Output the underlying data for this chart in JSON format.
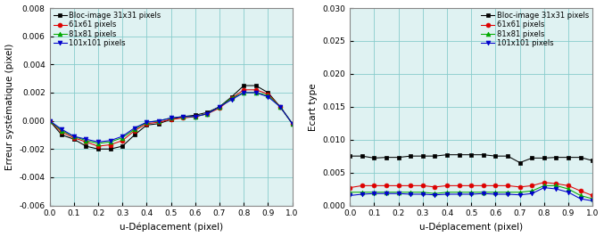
{
  "x": [
    0.0,
    0.05,
    0.1,
    0.15,
    0.2,
    0.25,
    0.3,
    0.35,
    0.4,
    0.45,
    0.5,
    0.55,
    0.6,
    0.65,
    0.7,
    0.75,
    0.8,
    0.85,
    0.9,
    0.95,
    1.0
  ],
  "left_series": {
    "s31": [
      0.0,
      -0.001,
      -0.0013,
      -0.0018,
      -0.002,
      -0.002,
      -0.0018,
      -0.001,
      -0.0003,
      -0.0002,
      0.0001,
      0.0003,
      0.0004,
      0.0006,
      0.001,
      0.0017,
      0.0025,
      0.0025,
      0.002,
      0.001,
      -0.0002
    ],
    "s61": [
      0.0,
      -0.0008,
      -0.0012,
      -0.0015,
      -0.0018,
      -0.0017,
      -0.0014,
      -0.0007,
      -0.0002,
      -0.0001,
      0.0001,
      0.0002,
      0.0003,
      0.0005,
      0.0009,
      0.0016,
      0.0022,
      0.0022,
      0.0019,
      0.001,
      -0.0002
    ],
    "s81": [
      0.0,
      -0.0007,
      -0.0011,
      -0.0014,
      -0.0016,
      -0.0015,
      -0.0012,
      -0.0006,
      -0.0001,
      0.0,
      0.0002,
      0.0003,
      0.0003,
      0.0005,
      0.001,
      0.0016,
      0.002,
      0.002,
      0.0018,
      0.001,
      -0.0002
    ],
    "s101": [
      0.0,
      -0.0006,
      -0.0011,
      -0.0013,
      -0.0015,
      -0.0014,
      -0.0011,
      -0.0005,
      -0.0001,
      0.0,
      0.0002,
      0.0003,
      0.0003,
      0.0005,
      0.001,
      0.0015,
      0.002,
      0.002,
      0.0017,
      0.001,
      -0.0002
    ]
  },
  "right_series": {
    "s31": [
      0.0075,
      0.0075,
      0.0072,
      0.0073,
      0.0073,
      0.0075,
      0.0075,
      0.0075,
      0.0077,
      0.0077,
      0.0077,
      0.0077,
      0.0075,
      0.0075,
      0.0065,
      0.0072,
      0.0072,
      0.0073,
      0.0073,
      0.0073,
      0.0068
    ],
    "s61": [
      0.0027,
      0.003,
      0.003,
      0.003,
      0.003,
      0.003,
      0.003,
      0.0028,
      0.003,
      0.003,
      0.003,
      0.003,
      0.003,
      0.003,
      0.0028,
      0.003,
      0.0035,
      0.0033,
      0.003,
      0.0022,
      0.0015
    ],
    "s81": [
      0.002,
      0.002,
      0.002,
      0.002,
      0.002,
      0.002,
      0.002,
      0.0018,
      0.002,
      0.002,
      0.002,
      0.002,
      0.002,
      0.002,
      0.002,
      0.0022,
      0.003,
      0.003,
      0.0025,
      0.0015,
      0.001
    ],
    "s101": [
      0.0015,
      0.0017,
      0.0018,
      0.0018,
      0.0018,
      0.0017,
      0.0017,
      0.0016,
      0.0017,
      0.0017,
      0.0017,
      0.0018,
      0.0017,
      0.0017,
      0.0016,
      0.0018,
      0.0027,
      0.0025,
      0.002,
      0.001,
      0.0007
    ]
  },
  "colors": {
    "s31": "#000000",
    "s61": "#dd0000",
    "s81": "#00aa00",
    "s101": "#0000cc"
  },
  "markers": {
    "s31": "s",
    "s61": "o",
    "s81": "^",
    "s101": "v"
  },
  "legend_labels": {
    "s31": "Bloc-image 31x31 pixels",
    "s61": "61x61 pixels",
    "s81": "81x81 pixels",
    "s101": "101x101 pixels"
  },
  "left_ylabel": "Erreur systématique (pixel)",
  "right_ylabel": "Ecart type",
  "xlabel": "u-Déplacement (pixel)",
  "left_ylim": [
    -0.006,
    0.008
  ],
  "right_ylim": [
    0.0,
    0.03
  ],
  "xlim": [
    0.0,
    1.0
  ],
  "left_yticks": [
    -0.006,
    -0.004,
    -0.002,
    0.0,
    0.002,
    0.004,
    0.006,
    0.008
  ],
  "right_yticks": [
    0.0,
    0.005,
    0.01,
    0.015,
    0.02,
    0.025,
    0.03
  ],
  "xticks": [
    0.0,
    0.1,
    0.2,
    0.3,
    0.4,
    0.5,
    0.6,
    0.7,
    0.8,
    0.9,
    1.0
  ],
  "grid_color": "#88cccc",
  "bg_color": "#dff2f2",
  "marker_size": 3.5,
  "linewidth": 0.75,
  "tick_fontsize": 6.5,
  "label_fontsize": 7.5,
  "legend_fontsize": 6.0
}
